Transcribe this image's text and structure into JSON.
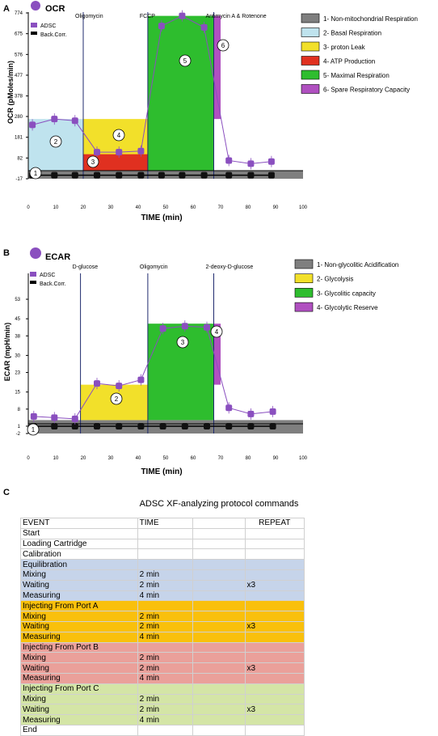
{
  "panels": {
    "A": "A",
    "B": "B",
    "C": "C"
  },
  "colors": {
    "purple": "#8a4fbf",
    "non_mito": "#7f7f7f",
    "basal": "#bfe3ee",
    "yellow": "#f2e02a",
    "red": "#e03020",
    "green": "#2ebd2e",
    "magenta": "#b050c0"
  },
  "chart_data": [
    {
      "type": "area",
      "title": "OCR",
      "xlabel": "TIME (min)",
      "ylabel": "OCR (pMoles/min)",
      "xlim": [
        0,
        100
      ],
      "ylim": [
        -17,
        774
      ],
      "x_ticks": [
        "0",
        "10",
        "20",
        "30",
        "40",
        "50",
        "60",
        "70",
        "80",
        "90",
        "100"
      ],
      "y_ticks": [
        "774",
        "675",
        "576",
        "477",
        "378",
        "280",
        "181",
        "82",
        "-17"
      ],
      "injections": [
        {
          "label": "Oligomycin",
          "x": 20
        },
        {
          "label": "FCCP",
          "x": 43.5
        },
        {
          "label": "Antimycin A & Rotenone",
          "x": 67.5
        }
      ],
      "inset_legend": [
        {
          "label": "ADSC",
          "color": "#8a4fbf"
        },
        {
          "label": "Back.Corr.",
          "color": "#000000"
        }
      ],
      "series": [
        {
          "name": "ADSC",
          "x": [
            1.5,
            9.5,
            17,
            25,
            33,
            41,
            48.5,
            56,
            64,
            73,
            81,
            88.5
          ],
          "y": [
            240,
            268,
            260,
            110,
            110,
            115,
            712,
            760,
            705,
            70,
            55,
            65
          ]
        },
        {
          "name": "Back.Corr.",
          "x": [
            1.5,
            9.5,
            17,
            25,
            33,
            41,
            48.5,
            56,
            64,
            73,
            81,
            88.5
          ],
          "y": [
            0,
            0,
            0,
            0,
            0,
            0,
            0,
            0,
            0,
            0,
            0,
            0
          ]
        }
      ],
      "regions": [
        {
          "label": "1- Non-mitochondrial Respiration",
          "color": "#7f7f7f",
          "x": [
            0,
            100
          ],
          "y": [
            -17,
            20
          ]
        },
        {
          "label": "2- Basal Respiration",
          "color": "#bfe3ee",
          "x": [
            0,
            20
          ],
          "y": [
            20,
            268
          ]
        },
        {
          "label": "3- proton Leak",
          "color": "#f2e02a",
          "x": [
            20,
            43.5
          ],
          "y": [
            20,
            268
          ]
        },
        {
          "label": "4- ATP Production",
          "color": "#e03020",
          "x": [
            20,
            43.5
          ],
          "y": [
            20,
            100
          ]
        },
        {
          "label": "5- Maximal Respiration",
          "color": "#2ebd2e",
          "x": [
            43.5,
            67.5
          ],
          "y": [
            20,
            760
          ]
        },
        {
          "label": "6- Spare Respiratory Capacity",
          "color": "#b050c0",
          "x": [
            67.5,
            70
          ],
          "y": [
            268,
            760
          ]
        }
      ],
      "badges": [
        "1",
        "2",
        "3",
        "4",
        "5",
        "6"
      ]
    },
    {
      "type": "area",
      "title": "ECAR",
      "xlabel": "TIME (min)",
      "ylabel": "ECAR (mpH/min)",
      "xlim": [
        0,
        100
      ],
      "ylim": [
        -2,
        53
      ],
      "x_ticks": [
        "0",
        "10",
        "20",
        "30",
        "40",
        "50",
        "60",
        "70",
        "80",
        "90",
        "100"
      ],
      "y_ticks": [
        "53",
        "45",
        "38",
        "30",
        "23",
        "15",
        "8",
        "1",
        "-2"
      ],
      "injections": [
        {
          "label": "D-glucose",
          "x": 19
        },
        {
          "label": "Oligomycin",
          "x": 43.5
        },
        {
          "label": "2-deoxy-D-glucose",
          "x": 67.5
        }
      ],
      "inset_legend": [
        {
          "label": "ADSC",
          "color": "#8a4fbf"
        },
        {
          "label": "Back.Corr.",
          "color": "#000000"
        }
      ],
      "series": [
        {
          "name": "ADSC",
          "x": [
            2,
            9.5,
            17,
            25,
            33,
            41,
            49,
            57,
            65,
            73,
            81,
            89
          ],
          "y": [
            5,
            4.5,
            4,
            18.5,
            17.5,
            20,
            41,
            42,
            41.5,
            8.5,
            6,
            7
          ]
        },
        {
          "name": "Back.Corr.",
          "x": [
            2,
            9.5,
            17,
            25,
            33,
            41,
            49,
            57,
            65,
            73,
            81,
            89
          ],
          "y": [
            1,
            1,
            1,
            1,
            1,
            1,
            1,
            1,
            1,
            1,
            1,
            1
          ]
        }
      ],
      "regions": [
        {
          "label": "1- Non-glycolitic Acidification",
          "color": "#7f7f7f",
          "x": [
            0,
            100
          ],
          "y": [
            -2,
            3.5
          ]
        },
        {
          "label": "2- Glycolysis",
          "color": "#f2e02a",
          "x": [
            19,
            43.5
          ],
          "y": [
            3.5,
            18
          ]
        },
        {
          "label": "3- Glycolitic capacity",
          "color": "#2ebd2e",
          "x": [
            43.5,
            67.5
          ],
          "y": [
            3.5,
            43
          ]
        },
        {
          "label": "4- Glycolytic Reserve",
          "color": "#b050c0",
          "x": [
            67.5,
            70
          ],
          "y": [
            18,
            43
          ]
        }
      ],
      "badges": [
        "1",
        "2",
        "3",
        "4"
      ]
    }
  ],
  "protocol": {
    "title": "ADSC XF-analyzing protocol commands",
    "headers": [
      "EVENT",
      "TIME",
      "",
      "REPEAT"
    ],
    "rows": [
      {
        "group": "",
        "event": "Start",
        "time": "",
        "repeat": ""
      },
      {
        "group": "",
        "event": "Loading Cartridge",
        "time": "",
        "repeat": ""
      },
      {
        "group": "",
        "event": "Calibration",
        "time": "",
        "repeat": ""
      },
      {
        "group": "g-eq",
        "event": "Equilibration",
        "time": "",
        "repeat": ""
      },
      {
        "group": "g-eq",
        "event": "Mixing",
        "time": "2 min",
        "repeat": ""
      },
      {
        "group": "g-eq",
        "event": "Waiting",
        "time": "2 min",
        "repeat": "x3"
      },
      {
        "group": "g-eq",
        "event": "Measuring",
        "time": "4 min",
        "repeat": ""
      },
      {
        "group": "g-a",
        "event": "Injecting From Port A",
        "time": "",
        "repeat": ""
      },
      {
        "group": "g-a",
        "event": "Mixing",
        "time": "2 min",
        "repeat": ""
      },
      {
        "group": "g-a",
        "event": "Waiting",
        "time": "2 min",
        "repeat": "x3"
      },
      {
        "group": "g-a",
        "event": "Measuring",
        "time": "4 min",
        "repeat": ""
      },
      {
        "group": "g-b",
        "event": "Injecting From Port B",
        "time": "",
        "repeat": ""
      },
      {
        "group": "g-b",
        "event": "Mixing",
        "time": "2 min",
        "repeat": ""
      },
      {
        "group": "g-b",
        "event": "Waiting",
        "time": "2 min",
        "repeat": "x3"
      },
      {
        "group": "g-b",
        "event": "Measuring",
        "time": "4 min",
        "repeat": ""
      },
      {
        "group": "g-c",
        "event": "Injecting From Port C",
        "time": "",
        "repeat": ""
      },
      {
        "group": "g-c",
        "event": "Mixing",
        "time": "2 min",
        "repeat": ""
      },
      {
        "group": "g-c",
        "event": "Waiting",
        "time": "2 min",
        "repeat": "x3"
      },
      {
        "group": "g-c",
        "event": "Measuring",
        "time": "4 min",
        "repeat": ""
      },
      {
        "group": "",
        "event": "End",
        "time": "",
        "repeat": ""
      }
    ]
  }
}
